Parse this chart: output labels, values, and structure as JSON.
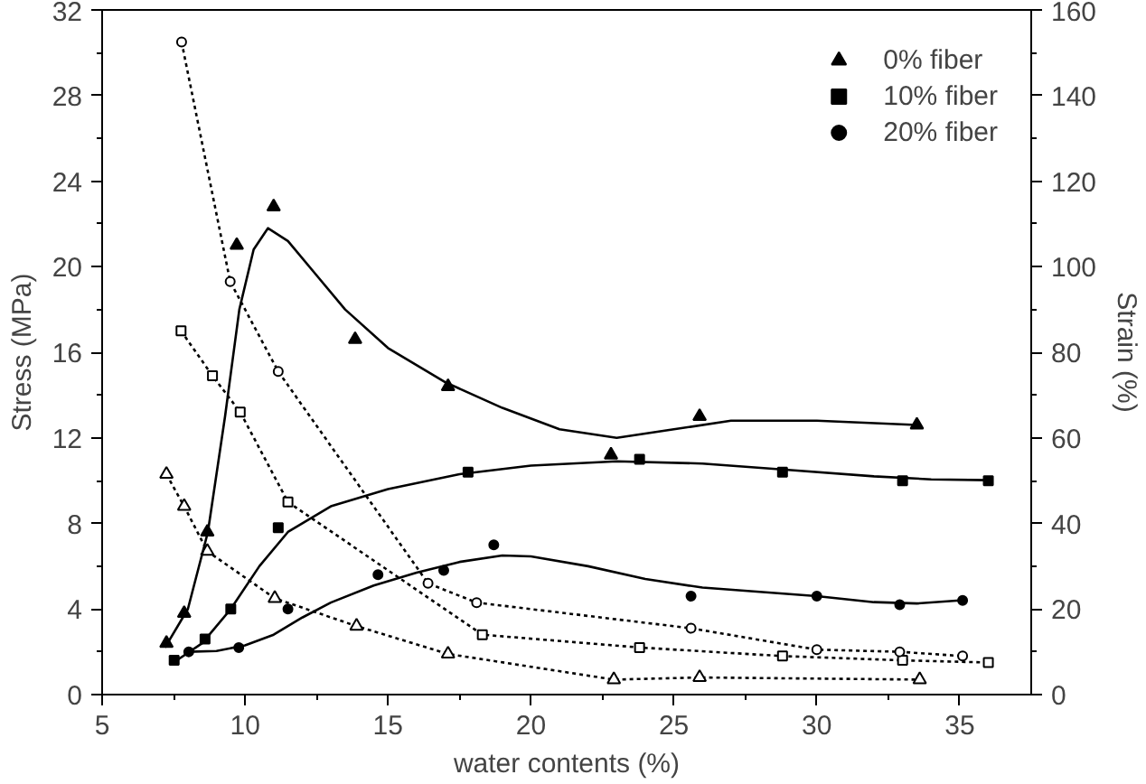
{
  "chart_data": {
    "type": "line",
    "xlabel": "water contents (%)",
    "ylabel": "Stress (MPa)",
    "y2label": "Strain (%)",
    "xlim": [
      5,
      37.5
    ],
    "ylim": [
      0,
      32
    ],
    "y2lim": [
      0,
      160
    ],
    "xticks": [
      5,
      {
        "value": 7.5,
        "label": null
      },
      10,
      {
        "value": 12.5,
        "label": null
      },
      15,
      {
        "value": 17.5,
        "label": null
      },
      20,
      {
        "value": 22.5,
        "label": null
      },
      25,
      {
        "value": 27.5,
        "label": null
      },
      30,
      {
        "value": 32.5,
        "label": null
      },
      35
    ],
    "yticks": [
      0,
      {
        "value": 2,
        "label": null
      },
      4,
      {
        "value": 6,
        "label": null
      },
      8,
      {
        "value": 10,
        "label": null
      },
      12,
      {
        "value": 14,
        "label": null
      },
      16,
      {
        "value": 18,
        "label": null
      },
      20,
      {
        "value": 22,
        "label": null
      },
      24,
      {
        "value": 26,
        "label": null
      },
      28,
      {
        "value": 30,
        "label": null
      },
      32
    ],
    "y2ticks": [
      0,
      {
        "value": 10,
        "label": null
      },
      20,
      {
        "value": 30,
        "label": null
      },
      40,
      {
        "value": 50,
        "label": null
      },
      60,
      {
        "value": 70,
        "label": null
      },
      80,
      {
        "value": 90,
        "label": null
      },
      100,
      {
        "value": 110,
        "label": null
      },
      120,
      {
        "value": 130,
        "label": null
      },
      140,
      {
        "value": 150,
        "label": null
      },
      160
    ],
    "grid": false,
    "legend": "top right",
    "series": [
      {
        "type": "line",
        "line_style": "dotted",
        "marker": "triangle",
        "color": "#000000",
        "x": [
          7.25,
          7.87,
          8.68,
          11.04,
          13.9,
          17.1,
          22.9,
          25.9,
          33.6
        ],
        "values": [
          10.3,
          8.8,
          6.7,
          4.5,
          3.2,
          1.9,
          0.7,
          0.8,
          0.7
        ]
      },
      {
        "type": "line",
        "line_style": "dotted",
        "marker": "square",
        "color": "#000000",
        "x": [
          7.76,
          8.86,
          9.83,
          11.5,
          18.3,
          23.8,
          28.8,
          33.0,
          36.0
        ],
        "values": [
          17.0,
          14.9,
          13.2,
          9.0,
          2.8,
          2.2,
          1.8,
          1.6,
          1.5
        ]
      },
      {
        "type": "line",
        "line_style": "dotted",
        "marker": "circle",
        "color": "#000000",
        "x": [
          7.78,
          9.48,
          11.16,
          16.4,
          18.1,
          25.6,
          30.0,
          32.9,
          35.1
        ],
        "values": [
          30.5,
          19.3,
          15.1,
          5.2,
          4.3,
          3.1,
          2.1,
          2.0,
          1.8
        ]
      },
      {
        "name": "0% fiber",
        "type": "scatter",
        "axis": "y2",
        "marker": "triangle",
        "color": "#000000",
        "x": [
          7.25,
          7.87,
          8.68,
          9.71,
          11.0,
          13.85,
          17.1,
          22.8,
          25.9,
          33.5
        ],
        "values": [
          12,
          19,
          38,
          105,
          114,
          83,
          72,
          56,
          65,
          63
        ]
      },
      {
        "name": "10% fiber",
        "type": "scatter",
        "axis": "y2",
        "marker": "square",
        "color": "#000000",
        "x": [
          7.52,
          8.6,
          9.5,
          11.16,
          17.8,
          23.8,
          28.8,
          33.0,
          36.0
        ],
        "values": [
          8,
          13,
          20,
          39,
          52,
          55,
          52,
          50,
          50
        ]
      },
      {
        "name": "20% fiber",
        "type": "scatter",
        "axis": "y2",
        "marker": "circle",
        "color": "#000000",
        "x": [
          8.03,
          9.78,
          11.5,
          14.65,
          16.95,
          18.7,
          25.6,
          30.0,
          32.9,
          35.1
        ],
        "values": [
          10,
          11,
          20,
          28,
          29,
          35,
          23,
          23,
          21,
          22
        ]
      },
      {
        "axis": "y2",
        "line_style": "solid",
        "marker": "none",
        "color": "#000000",
        "x": [
          7.2,
          8,
          8.7,
          9.3,
          9.8,
          10.3,
          10.8,
          11.5,
          12.5,
          13.5,
          15,
          17,
          19,
          21,
          23,
          25,
          27,
          30,
          33.5
        ],
        "values": [
          11,
          20,
          38,
          65,
          90,
          104,
          109,
          106,
          98,
          90,
          81,
          73,
          67,
          62,
          60,
          62,
          64,
          64,
          63
        ]
      },
      {
        "axis": "y2",
        "line_style": "solid",
        "marker": "none",
        "color": "#000000",
        "x": [
          7.5,
          8.5,
          9.5,
          10.5,
          11.5,
          13,
          15,
          17.5,
          20,
          23,
          26,
          29,
          32,
          34,
          36
        ],
        "values": [
          7.5,
          12,
          20,
          30,
          38,
          44,
          48,
          51.5,
          53.5,
          54.5,
          54,
          52.5,
          51,
          50.3,
          50.1
        ]
      },
      {
        "axis": "y2",
        "line_style": "solid",
        "marker": "none",
        "color": "#000000",
        "x": [
          8,
          9,
          10,
          11,
          12,
          13,
          14.5,
          16,
          17.5,
          19,
          20,
          22,
          24,
          26,
          28,
          30,
          32,
          33.5,
          35
        ],
        "values": [
          10,
          10.2,
          11.5,
          14,
          18,
          21.5,
          25.5,
          28.5,
          31,
          32.5,
          32.3,
          30,
          27,
          25,
          24,
          23,
          21.6,
          21.3,
          22
        ]
      }
    ]
  }
}
